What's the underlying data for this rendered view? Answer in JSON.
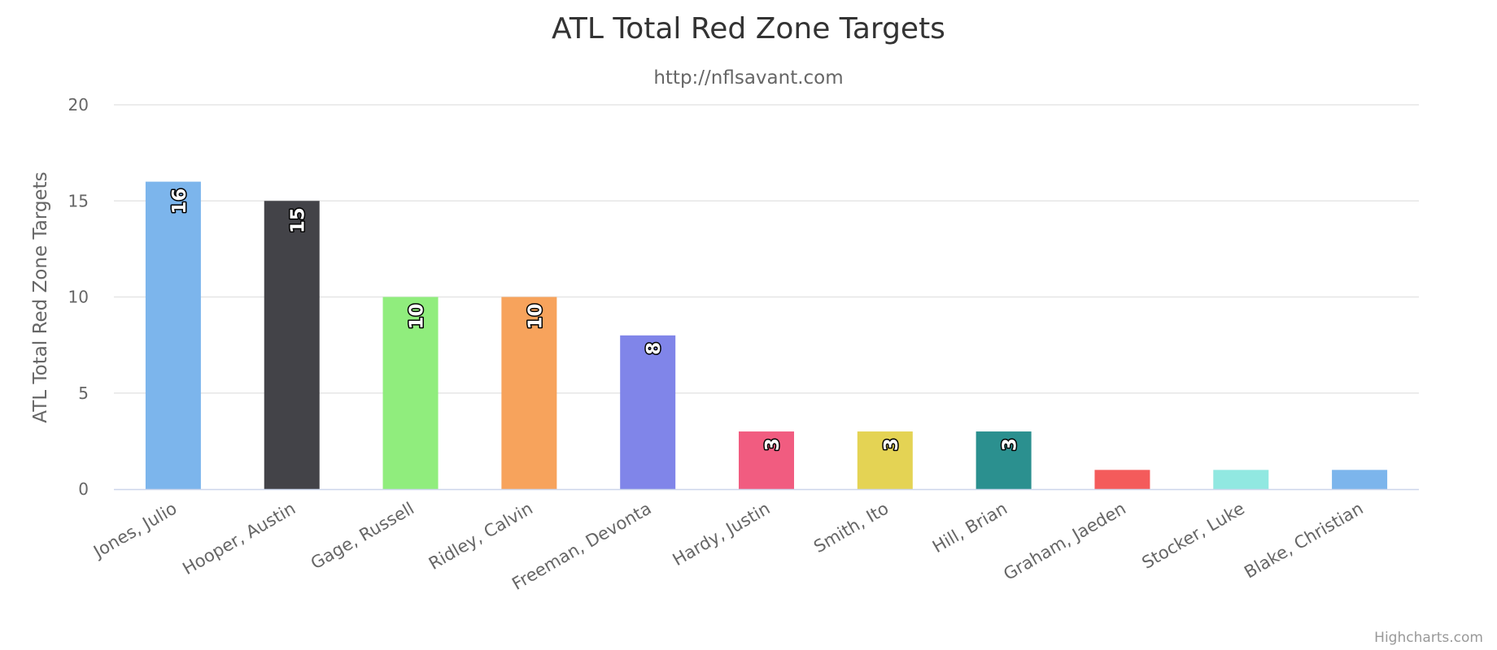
{
  "chart_data": {
    "type": "bar",
    "title": "ATL Total Red Zone Targets",
    "subtitle": "http://nflsavant.com",
    "xlabel": "",
    "ylabel": "ATL Total Red Zone Targets",
    "ylim": [
      0,
      20
    ],
    "yticks": [
      0,
      5,
      10,
      15,
      20
    ],
    "grid": true,
    "legend": "none",
    "categories": [
      "Jones, Julio",
      "Hooper, Austin",
      "Gage, Russell",
      "Ridley, Calvin",
      "Freeman, Devonta",
      "Hardy, Justin",
      "Smith, Ito",
      "Hill, Brian",
      "Graham, Jaeden",
      "Stocker, Luke",
      "Blake, Christian"
    ],
    "values": [
      16,
      15,
      10,
      10,
      8,
      3,
      3,
      3,
      1,
      1,
      1
    ],
    "data_labels": [
      "16",
      "15",
      "10",
      "10",
      "8",
      "3",
      "3",
      "3",
      "",
      "",
      ""
    ],
    "colors": [
      "#7cb5ec",
      "#434348",
      "#90ed7d",
      "#f7a35c",
      "#8085e9",
      "#f15c80",
      "#e4d354",
      "#2b908f",
      "#f45b5b",
      "#91e8e1",
      "#7cb5ec"
    ]
  },
  "credits": "Highcharts.com"
}
